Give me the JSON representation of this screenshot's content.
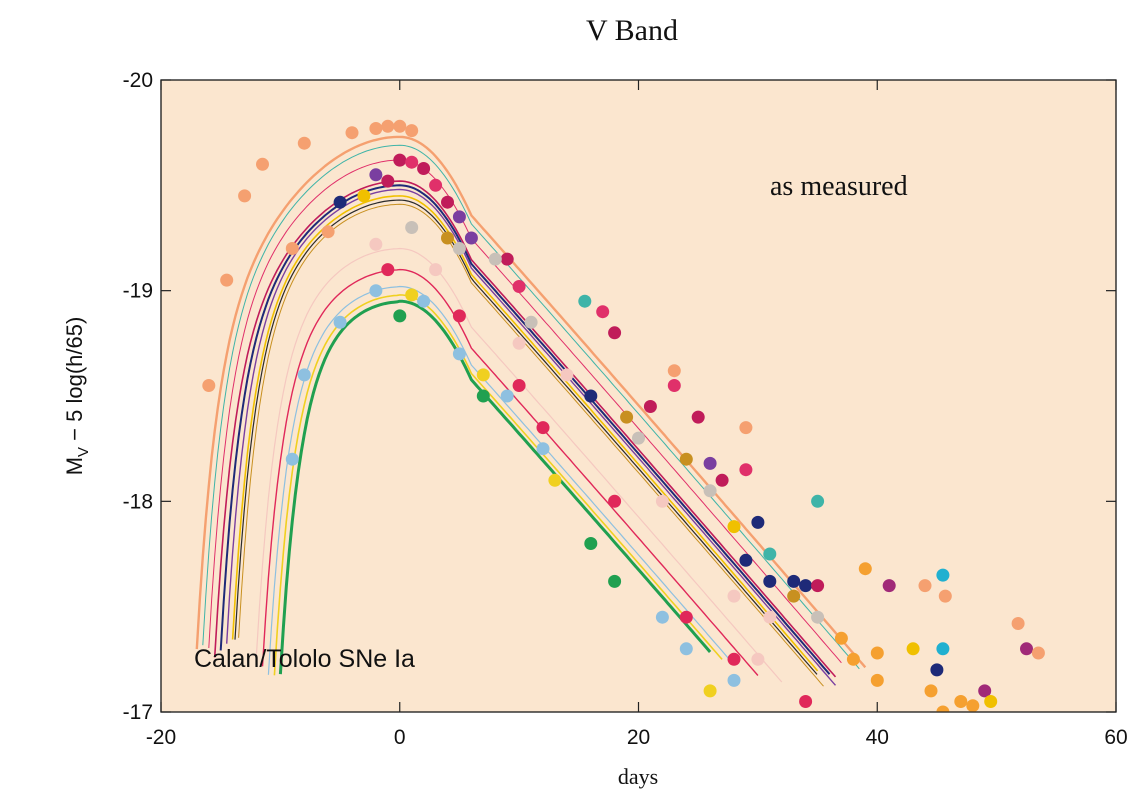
{
  "chart_data": {
    "type": "line",
    "title": "V Band",
    "xlabel": "days",
    "ylabel_main": "M",
    "ylabel_sub": "V",
    "ylabel_rest": " − 5 log(h/65)",
    "xlim": [
      -20,
      60
    ],
    "ylim": [
      -17,
      -20
    ],
    "x_ticks": [
      -20,
      0,
      20,
      40,
      60
    ],
    "y_ticks": [
      -20,
      -19,
      -18,
      -17
    ],
    "annotations": [
      "as measured",
      "Calan/Tololo SNe Ia"
    ],
    "grid": false,
    "background": "#fbe6cf",
    "curves": [
      {
        "color": "#f5a070",
        "peak": -19.73,
        "t0": -17,
        "w": 2.4,
        "end": 39
      },
      {
        "color": "#3fb4a8",
        "peak": -19.69,
        "t0": -16.5,
        "w": 1.0,
        "end": 38.5
      },
      {
        "color": "#e0306a",
        "peak": -19.62,
        "t0": -16,
        "w": 1.0,
        "end": 37
      },
      {
        "color": "#c01c5a",
        "peak": -19.52,
        "t0": -15.5,
        "w": 1.6,
        "end": 36.5
      },
      {
        "color": "#1e2a78",
        "peak": -19.5,
        "t0": -15,
        "w": 2.0,
        "end": 36
      },
      {
        "color": "#7a3fa0",
        "peak": -19.48,
        "t0": -14.5,
        "w": 1.4,
        "end": 36.5
      },
      {
        "color": "#f0c000",
        "peak": -19.45,
        "t0": -14,
        "w": 1.6,
        "end": 35
      },
      {
        "color": "#2a2a2a",
        "peak": -19.43,
        "t0": -13.8,
        "w": 1.2,
        "end": 35
      },
      {
        "color": "#c89020",
        "peak": -19.41,
        "t0": -13.5,
        "w": 1.0,
        "end": 35.5
      },
      {
        "color": "#f5c8c0",
        "peak": -19.2,
        "t0": -12,
        "w": 1.2,
        "end": 32
      },
      {
        "color": "#e0285a",
        "peak": -19.1,
        "t0": -11.5,
        "w": 1.4,
        "end": 30
      },
      {
        "color": "#8ec0e0",
        "peak": -19.02,
        "t0": -11,
        "w": 1.2,
        "end": 28
      },
      {
        "color": "#f0d020",
        "peak": -18.98,
        "t0": -10.5,
        "w": 1.6,
        "end": 27
      },
      {
        "color": "#20a050",
        "peak": -18.95,
        "t0": -10,
        "w": 3.0,
        "end": 26
      }
    ],
    "points": [
      {
        "x": -16,
        "y": -18.55,
        "c": "#f5a070"
      },
      {
        "x": -14.5,
        "y": -19.05,
        "c": "#f5a070"
      },
      {
        "x": -13,
        "y": -19.45,
        "c": "#f5a070"
      },
      {
        "x": -11.5,
        "y": -19.6,
        "c": "#f5a070"
      },
      {
        "x": -8,
        "y": -19.7,
        "c": "#f5a070"
      },
      {
        "x": -4,
        "y": -19.75,
        "c": "#f5a070"
      },
      {
        "x": -2,
        "y": -19.77,
        "c": "#f5a070"
      },
      {
        "x": -1,
        "y": -19.78,
        "c": "#f5a070"
      },
      {
        "x": 0,
        "y": -19.78,
        "c": "#f5a070"
      },
      {
        "x": 1,
        "y": -19.76,
        "c": "#f5a070"
      },
      {
        "x": 15.5,
        "y": -18.95,
        "c": "#3fb4a8"
      },
      {
        "x": 23,
        "y": -18.62,
        "c": "#f5a070"
      },
      {
        "x": 29,
        "y": -18.35,
        "c": "#f5a070"
      },
      {
        "x": 35,
        "y": -18.0,
        "c": "#3fb4a8"
      },
      {
        "x": 0,
        "y": -19.62,
        "c": "#c01c5a"
      },
      {
        "x": 1,
        "y": -19.61,
        "c": "#e0306a"
      },
      {
        "x": 2,
        "y": -19.58,
        "c": "#c01c5a"
      },
      {
        "x": 3,
        "y": -19.5,
        "c": "#e0306a"
      },
      {
        "x": -2,
        "y": -19.55,
        "c": "#7a3fa0"
      },
      {
        "x": -1,
        "y": -19.52,
        "c": "#c01c5a"
      },
      {
        "x": 4,
        "y": -19.42,
        "c": "#c01c5a"
      },
      {
        "x": 5,
        "y": -19.35,
        "c": "#7a3fa0"
      },
      {
        "x": 6,
        "y": -19.25,
        "c": "#7a3fa0"
      },
      {
        "x": 9,
        "y": -19.15,
        "c": "#c01c5a"
      },
      {
        "x": 10,
        "y": -19.02,
        "c": "#e0306a"
      },
      {
        "x": 17,
        "y": -18.9,
        "c": "#e0306a"
      },
      {
        "x": 18,
        "y": -18.8,
        "c": "#c01c5a"
      },
      {
        "x": 23,
        "y": -18.55,
        "c": "#e0306a"
      },
      {
        "x": 21,
        "y": -18.45,
        "c": "#c01c5a"
      },
      {
        "x": 25,
        "y": -18.4,
        "c": "#c01c5a"
      },
      {
        "x": 26,
        "y": -18.18,
        "c": "#7a3fa0"
      },
      {
        "x": 29,
        "y": -18.15,
        "c": "#e0306a"
      },
      {
        "x": 27,
        "y": -18.1,
        "c": "#c01c5a"
      },
      {
        "x": 30,
        "y": -17.9,
        "c": "#1e2a78"
      },
      {
        "x": 31,
        "y": -17.75,
        "c": "#3fb4a8"
      },
      {
        "x": 34,
        "y": -17.6,
        "c": "#1e2a78"
      },
      {
        "x": 35,
        "y": -17.6,
        "c": "#c01c5a"
      },
      {
        "x": -5,
        "y": -19.42,
        "c": "#1e2a78"
      },
      {
        "x": -3,
        "y": -19.45,
        "c": "#f0c000"
      },
      {
        "x": -6,
        "y": -19.28,
        "c": "#f5a070"
      },
      {
        "x": -9,
        "y": -19.2,
        "c": "#f5a070"
      },
      {
        "x": 1,
        "y": -19.3,
        "c": "#c8c0b8"
      },
      {
        "x": 4,
        "y": -19.25,
        "c": "#c89020"
      },
      {
        "x": 5,
        "y": -19.2,
        "c": "#c8c0b8"
      },
      {
        "x": 8,
        "y": -19.15,
        "c": "#c8c0b8"
      },
      {
        "x": 11,
        "y": -18.85,
        "c": "#c8c0b8"
      },
      {
        "x": 16,
        "y": -18.5,
        "c": "#1e2a78"
      },
      {
        "x": 19,
        "y": -18.4,
        "c": "#c89020"
      },
      {
        "x": 20,
        "y": -18.3,
        "c": "#c8c0b8"
      },
      {
        "x": 24,
        "y": -18.2,
        "c": "#c89020"
      },
      {
        "x": 26,
        "y": -18.05,
        "c": "#c8c0b8"
      },
      {
        "x": 28,
        "y": -17.88,
        "c": "#f0c000"
      },
      {
        "x": 29,
        "y": -17.72,
        "c": "#1e2a78"
      },
      {
        "x": 31,
        "y": -17.62,
        "c": "#1e2a78"
      },
      {
        "x": 33,
        "y": -17.62,
        "c": "#1e2a78"
      },
      {
        "x": 33,
        "y": -17.55,
        "c": "#c89020"
      },
      {
        "x": 35,
        "y": -17.45,
        "c": "#c8c0b8"
      },
      {
        "x": 37,
        "y": -17.35,
        "c": "#f5a030"
      },
      {
        "x": -2,
        "y": -19.22,
        "c": "#f5c8c0"
      },
      {
        "x": 3,
        "y": -19.1,
        "c": "#f5c8c0"
      },
      {
        "x": 10,
        "y": -18.75,
        "c": "#f5c8c0"
      },
      {
        "x": 14,
        "y": -18.6,
        "c": "#f5c8c0"
      },
      {
        "x": 22,
        "y": -18.0,
        "c": "#f5c8c0"
      },
      {
        "x": 28,
        "y": -17.55,
        "c": "#f5c8c0"
      },
      {
        "x": 31,
        "y": -17.45,
        "c": "#f5c8c0"
      },
      {
        "x": 30,
        "y": -17.25,
        "c": "#f5c8c0"
      },
      {
        "x": -1,
        "y": -19.1,
        "c": "#e0285a"
      },
      {
        "x": 5,
        "y": -18.88,
        "c": "#e0285a"
      },
      {
        "x": 10,
        "y": -18.55,
        "c": "#e0285a"
      },
      {
        "x": 12,
        "y": -18.35,
        "c": "#e0285a"
      },
      {
        "x": 18,
        "y": -18.0,
        "c": "#e0285a"
      },
      {
        "x": 24,
        "y": -17.45,
        "c": "#e0285a"
      },
      {
        "x": 28,
        "y": -17.25,
        "c": "#e0285a"
      },
      {
        "x": 34,
        "y": -17.05,
        "c": "#e0285a"
      },
      {
        "x": -9,
        "y": -18.2,
        "c": "#8ec0e0"
      },
      {
        "x": -8,
        "y": -18.6,
        "c": "#8ec0e0"
      },
      {
        "x": -5,
        "y": -18.85,
        "c": "#8ec0e0"
      },
      {
        "x": -2,
        "y": -19.0,
        "c": "#8ec0e0"
      },
      {
        "x": 2,
        "y": -18.95,
        "c": "#8ec0e0"
      },
      {
        "x": 5,
        "y": -18.7,
        "c": "#8ec0e0"
      },
      {
        "x": 9,
        "y": -18.5,
        "c": "#8ec0e0"
      },
      {
        "x": 12,
        "y": -18.25,
        "c": "#8ec0e0"
      },
      {
        "x": 22,
        "y": -17.45,
        "c": "#8ec0e0"
      },
      {
        "x": 24,
        "y": -17.3,
        "c": "#8ec0e0"
      },
      {
        "x": 28,
        "y": -17.15,
        "c": "#8ec0e0"
      },
      {
        "x": 1,
        "y": -18.98,
        "c": "#f0d020"
      },
      {
        "x": 7,
        "y": -18.6,
        "c": "#f0d020"
      },
      {
        "x": 13,
        "y": -18.1,
        "c": "#f0d020"
      },
      {
        "x": 26,
        "y": -17.1,
        "c": "#f0d020"
      },
      {
        "x": 0,
        "y": -18.88,
        "c": "#20a050"
      },
      {
        "x": 7,
        "y": -18.5,
        "c": "#20a050"
      },
      {
        "x": 16,
        "y": -17.8,
        "c": "#20a050"
      },
      {
        "x": 18,
        "y": -17.62,
        "c": "#20a050"
      },
      {
        "x": 39,
        "y": -17.68,
        "c": "#f5a030"
      },
      {
        "x": 41,
        "y": -17.6,
        "c": "#a02a78"
      },
      {
        "x": 44,
        "y": -17.6,
        "c": "#f5a070"
      },
      {
        "x": 45.5,
        "y": -17.65,
        "c": "#20b0d0"
      },
      {
        "x": 45.7,
        "y": -17.55,
        "c": "#f5a070"
      },
      {
        "x": 38,
        "y": -17.25,
        "c": "#f5a030"
      },
      {
        "x": 40,
        "y": -17.15,
        "c": "#f5a030"
      },
      {
        "x": 40,
        "y": -17.28,
        "c": "#f5a030"
      },
      {
        "x": 43,
        "y": -17.3,
        "c": "#f0c000"
      },
      {
        "x": 45.5,
        "y": -17.3,
        "c": "#20b0d0"
      },
      {
        "x": 45,
        "y": -17.2,
        "c": "#1e2a78"
      },
      {
        "x": 44.5,
        "y": -17.1,
        "c": "#f5a030"
      },
      {
        "x": 45.5,
        "y": -17.0,
        "c": "#f5a030"
      },
      {
        "x": 47,
        "y": -17.05,
        "c": "#f5a030"
      },
      {
        "x": 48,
        "y": -17.03,
        "c": "#f5a030"
      },
      {
        "x": 49,
        "y": -17.1,
        "c": "#a02a78"
      },
      {
        "x": 49.5,
        "y": -17.05,
        "c": "#f0c000"
      },
      {
        "x": 51.8,
        "y": -17.42,
        "c": "#f5a070"
      },
      {
        "x": 52.5,
        "y": -17.3,
        "c": "#a02a78"
      },
      {
        "x": 53.5,
        "y": -17.28,
        "c": "#f5a070"
      }
    ]
  }
}
